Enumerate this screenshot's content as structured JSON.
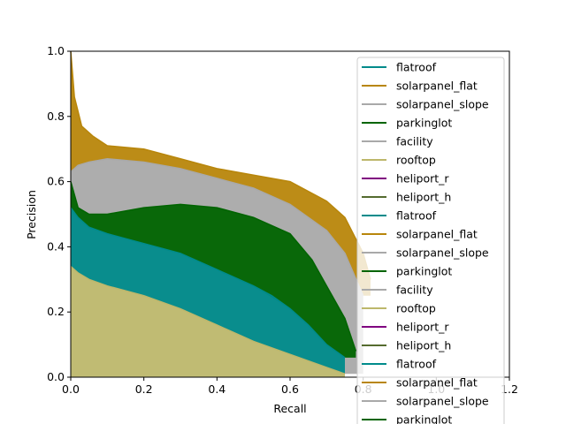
{
  "chart_data": {
    "type": "line",
    "xlabel": "Recall",
    "ylabel": "Precision",
    "xlim": [
      0.0,
      1.2
    ],
    "ylim": [
      0.0,
      1.0
    ],
    "x_ticks": [
      "0.0",
      "0.2",
      "0.4",
      "0.6",
      "0.8",
      "1.0",
      "1.2"
    ],
    "y_ticks": [
      "0.0",
      "0.2",
      "0.4",
      "0.6",
      "0.8",
      "1.0"
    ],
    "grid": false,
    "legend_position": "upper-right",
    "legend_entries": [
      {
        "name": "flatroof",
        "color": "#008b8b"
      },
      {
        "name": "solarpanel_flat",
        "color": "#b8860b"
      },
      {
        "name": "solarpanel_slope",
        "color": "#a9a9a9"
      },
      {
        "name": "parkinglot",
        "color": "#006400"
      },
      {
        "name": "facility",
        "color": "#a9a9a9"
      },
      {
        "name": "rooftop",
        "color": "#bdb76b"
      },
      {
        "name": "heliport_r",
        "color": "#800080"
      },
      {
        "name": "heliport_h",
        "color": "#556b2f"
      },
      {
        "name": "flatroof",
        "color": "#008b8b"
      },
      {
        "name": "solarpanel_flat",
        "color": "#b8860b"
      },
      {
        "name": "solarpanel_slope",
        "color": "#a9a9a9"
      },
      {
        "name": "parkinglot",
        "color": "#006400"
      },
      {
        "name": "facility",
        "color": "#a9a9a9"
      },
      {
        "name": "rooftop",
        "color": "#bdb76b"
      },
      {
        "name": "heliport_r",
        "color": "#800080"
      },
      {
        "name": "heliport_h",
        "color": "#556b2f"
      },
      {
        "name": "flatroof",
        "color": "#008b8b"
      },
      {
        "name": "solarpanel_flat",
        "color": "#b8860b"
      },
      {
        "name": "solarpanel_slope",
        "color": "#a9a9a9"
      },
      {
        "name": "parkinglot",
        "color": "#006400"
      }
    ],
    "series": [
      {
        "label": "solarpanel_flat",
        "color": "#b8860b",
        "x": [
          0.0,
          0.01,
          0.03,
          0.06,
          0.1,
          0.2,
          0.3,
          0.4,
          0.5,
          0.6,
          0.7,
          0.75,
          0.8,
          0.82
        ],
        "y": [
          1.0,
          0.86,
          0.77,
          0.74,
          0.71,
          0.7,
          0.67,
          0.64,
          0.62,
          0.6,
          0.54,
          0.49,
          0.38,
          0.3
        ],
        "fill_to": "solarpanel_slope"
      },
      {
        "label": "solarpanel_slope",
        "color": "#a9a9a9",
        "x": [
          0.0,
          0.02,
          0.05,
          0.1,
          0.2,
          0.3,
          0.4,
          0.5,
          0.6,
          0.7,
          0.75,
          0.8
        ],
        "y": [
          0.63,
          0.65,
          0.66,
          0.67,
          0.66,
          0.64,
          0.61,
          0.58,
          0.53,
          0.45,
          0.38,
          0.25
        ],
        "fill_to": "rooftop"
      },
      {
        "label": "parkinglot",
        "color": "#006400",
        "x": [
          0.0,
          0.02,
          0.05,
          0.1,
          0.2,
          0.3,
          0.4,
          0.5,
          0.6,
          0.66,
          0.7,
          0.75,
          0.78
        ],
        "y": [
          0.6,
          0.52,
          0.5,
          0.5,
          0.52,
          0.53,
          0.52,
          0.49,
          0.44,
          0.36,
          0.28,
          0.18,
          0.08
        ],
        "fill_to": "flatroof"
      },
      {
        "label": "flatroof",
        "color": "#008b8b",
        "x": [
          0.0,
          0.02,
          0.05,
          0.1,
          0.2,
          0.3,
          0.4,
          0.5,
          0.55,
          0.6,
          0.65,
          0.7,
          0.75
        ],
        "y": [
          0.52,
          0.49,
          0.46,
          0.44,
          0.41,
          0.38,
          0.33,
          0.28,
          0.25,
          0.21,
          0.16,
          0.1,
          0.06
        ],
        "fill_to": "rooftop"
      },
      {
        "label": "rooftop",
        "color": "#bdb76b",
        "x": [
          0.0,
          0.02,
          0.05,
          0.1,
          0.2,
          0.3,
          0.4,
          0.5,
          0.6,
          0.7,
          0.75
        ],
        "y": [
          0.34,
          0.32,
          0.3,
          0.28,
          0.25,
          0.21,
          0.16,
          0.11,
          0.07,
          0.03,
          0.01
        ],
        "fill_to": 0.0
      }
    ]
  }
}
